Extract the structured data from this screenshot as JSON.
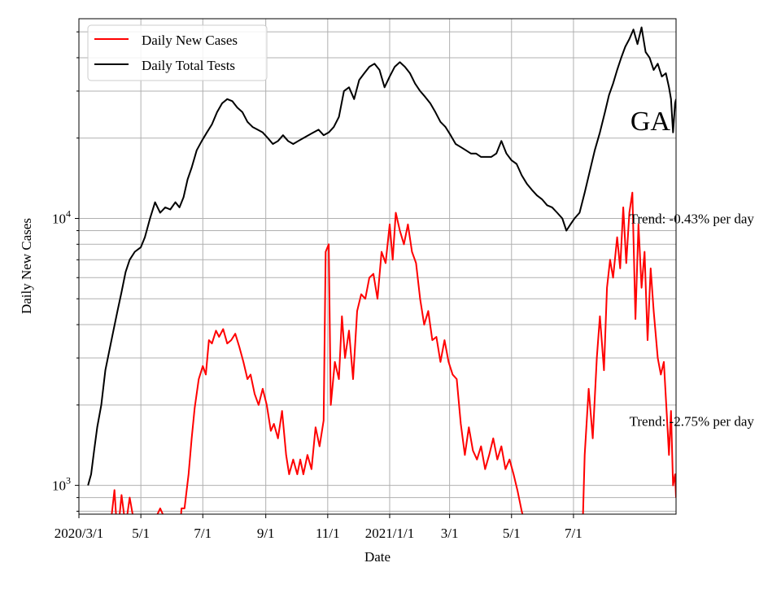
{
  "chart_data": {
    "type": "line",
    "title": "",
    "xlabel": "Date",
    "ylabel": "Daily New Cases",
    "yscale": "log",
    "ylim": [
      780,
      56000
    ],
    "xlim": [
      "2020-03-01",
      "2021-10-10"
    ],
    "grid": true,
    "legend_position": "upper left",
    "x_ticks": [
      {
        "date": "2020-03-01",
        "label": "2020/3/1"
      },
      {
        "date": "2020-05-01",
        "label": "5/1"
      },
      {
        "date": "2020-07-01",
        "label": "7/1"
      },
      {
        "date": "2020-09-01",
        "label": "9/1"
      },
      {
        "date": "2020-11-01",
        "label": "11/1"
      },
      {
        "date": "2021-01-01",
        "label": "2021/1/1"
      },
      {
        "date": "2021-03-01",
        "label": "3/1"
      },
      {
        "date": "2021-05-01",
        "label": "5/1"
      },
      {
        "date": "2021-07-01",
        "label": "7/1"
      }
    ],
    "y_ticks": [
      {
        "value": 1000,
        "base": "10",
        "exp": "3"
      },
      {
        "value": 10000,
        "base": "10",
        "exp": "4"
      }
    ],
    "annotations": [
      {
        "text": "GA",
        "date": "2021-08-26",
        "value": 23000
      },
      {
        "text": "Trend: -0.43% per day",
        "date": "2021-08-25",
        "value": 10000
      },
      {
        "text": "Trend: -2.75% per day",
        "date": "2021-08-25",
        "value": 1740
      }
    ],
    "series": [
      {
        "name": "Daily New Cases",
        "color": "#ff0000",
        "points": [
          [
            "2020-04-01",
            700
          ],
          [
            "2020-04-05",
            960
          ],
          [
            "2020-04-08",
            640
          ],
          [
            "2020-04-12",
            920
          ],
          [
            "2020-04-16",
            700
          ],
          [
            "2020-04-20",
            900
          ],
          [
            "2020-04-25",
            700
          ],
          [
            "2020-05-01",
            690
          ],
          [
            "2020-05-10",
            680
          ],
          [
            "2020-05-20",
            820
          ],
          [
            "2020-06-01",
            650
          ],
          [
            "2020-06-08",
            640
          ],
          [
            "2020-06-10",
            820
          ],
          [
            "2020-06-13",
            820
          ],
          [
            "2020-06-17",
            1100
          ],
          [
            "2020-06-20",
            1500
          ],
          [
            "2020-06-23",
            1950
          ],
          [
            "2020-06-27",
            2500
          ],
          [
            "2020-07-01",
            2800
          ],
          [
            "2020-07-04",
            2600
          ],
          [
            "2020-07-07",
            3500
          ],
          [
            "2020-07-10",
            3400
          ],
          [
            "2020-07-14",
            3800
          ],
          [
            "2020-07-17",
            3600
          ],
          [
            "2020-07-21",
            3850
          ],
          [
            "2020-07-25",
            3400
          ],
          [
            "2020-07-29",
            3500
          ],
          [
            "2020-08-02",
            3700
          ],
          [
            "2020-08-06",
            3300
          ],
          [
            "2020-08-10",
            2900
          ],
          [
            "2020-08-14",
            2500
          ],
          [
            "2020-08-17",
            2600
          ],
          [
            "2020-08-21",
            2200
          ],
          [
            "2020-08-25",
            2000
          ],
          [
            "2020-08-29",
            2300
          ],
          [
            "2020-09-02",
            2000
          ],
          [
            "2020-09-06",
            1600
          ],
          [
            "2020-09-09",
            1700
          ],
          [
            "2020-09-13",
            1500
          ],
          [
            "2020-09-17",
            1900
          ],
          [
            "2020-09-21",
            1300
          ],
          [
            "2020-09-24",
            1100
          ],
          [
            "2020-09-28",
            1250
          ],
          [
            "2020-10-02",
            1100
          ],
          [
            "2020-10-05",
            1250
          ],
          [
            "2020-10-08",
            1100
          ],
          [
            "2020-10-12",
            1300
          ],
          [
            "2020-10-16",
            1150
          ],
          [
            "2020-10-20",
            1650
          ],
          [
            "2020-10-24",
            1400
          ],
          [
            "2020-10-28",
            1750
          ],
          [
            "2020-10-30",
            7500
          ],
          [
            "2020-11-02",
            8000
          ],
          [
            "2020-11-04",
            2000
          ],
          [
            "2020-11-08",
            2900
          ],
          [
            "2020-11-12",
            2500
          ],
          [
            "2020-11-15",
            4300
          ],
          [
            "2020-11-18",
            3000
          ],
          [
            "2020-11-22",
            3800
          ],
          [
            "2020-11-26",
            2500
          ],
          [
            "2020-11-30",
            4500
          ],
          [
            "2020-12-04",
            5200
          ],
          [
            "2020-12-08",
            5000
          ],
          [
            "2020-12-12",
            6000
          ],
          [
            "2020-12-16",
            6200
          ],
          [
            "2020-12-20",
            5000
          ],
          [
            "2020-12-24",
            7500
          ],
          [
            "2020-12-28",
            6800
          ],
          [
            "2021-01-01",
            9500
          ],
          [
            "2021-01-04",
            7000
          ],
          [
            "2021-01-07",
            10500
          ],
          [
            "2021-01-11",
            9000
          ],
          [
            "2021-01-15",
            8000
          ],
          [
            "2021-01-19",
            9500
          ],
          [
            "2021-01-23",
            7500
          ],
          [
            "2021-01-27",
            6800
          ],
          [
            "2021-01-31",
            5000
          ],
          [
            "2021-02-04",
            4000
          ],
          [
            "2021-02-08",
            4500
          ],
          [
            "2021-02-12",
            3500
          ],
          [
            "2021-02-16",
            3600
          ],
          [
            "2021-02-20",
            2900
          ],
          [
            "2021-02-24",
            3500
          ],
          [
            "2021-02-28",
            2900
          ],
          [
            "2021-03-04",
            2600
          ],
          [
            "2021-03-08",
            2500
          ],
          [
            "2021-03-12",
            1700
          ],
          [
            "2021-03-16",
            1300
          ],
          [
            "2021-03-20",
            1650
          ],
          [
            "2021-03-24",
            1350
          ],
          [
            "2021-03-28",
            1250
          ],
          [
            "2021-04-01",
            1400
          ],
          [
            "2021-04-05",
            1150
          ],
          [
            "2021-04-09",
            1300
          ],
          [
            "2021-04-13",
            1500
          ],
          [
            "2021-04-17",
            1250
          ],
          [
            "2021-04-21",
            1400
          ],
          [
            "2021-04-25",
            1150
          ],
          [
            "2021-04-29",
            1250
          ],
          [
            "2021-05-03",
            1100
          ],
          [
            "2021-05-07",
            950
          ],
          [
            "2021-05-11",
            800
          ],
          [
            "2021-05-15",
            700
          ],
          [
            "2021-06-01",
            650
          ],
          [
            "2021-06-20",
            650
          ],
          [
            "2021-07-01",
            700
          ],
          [
            "2021-07-10",
            700
          ],
          [
            "2021-07-12",
            1300
          ],
          [
            "2021-07-16",
            2300
          ],
          [
            "2021-07-20",
            1500
          ],
          [
            "2021-07-24",
            3000
          ],
          [
            "2021-07-27",
            4300
          ],
          [
            "2021-07-31",
            2700
          ],
          [
            "2021-08-03",
            5500
          ],
          [
            "2021-08-06",
            7000
          ],
          [
            "2021-08-09",
            6000
          ],
          [
            "2021-08-13",
            8500
          ],
          [
            "2021-08-16",
            6500
          ],
          [
            "2021-08-19",
            11000
          ],
          [
            "2021-08-22",
            6800
          ],
          [
            "2021-08-25",
            10500
          ],
          [
            "2021-08-28",
            12500
          ],
          [
            "2021-08-31",
            4200
          ],
          [
            "2021-09-03",
            9500
          ],
          [
            "2021-09-06",
            5500
          ],
          [
            "2021-09-09",
            7500
          ],
          [
            "2021-09-12",
            3500
          ],
          [
            "2021-09-15",
            6500
          ],
          [
            "2021-09-18",
            4500
          ],
          [
            "2021-09-22",
            3000
          ],
          [
            "2021-09-25",
            2600
          ],
          [
            "2021-09-28",
            2900
          ],
          [
            "2021-10-01",
            1800
          ],
          [
            "2021-10-03",
            1300
          ],
          [
            "2021-10-05",
            1900
          ],
          [
            "2021-10-07",
            1000
          ],
          [
            "2021-10-09",
            1100
          ],
          [
            "2021-10-10",
            900
          ]
        ]
      },
      {
        "name": "Daily Total Tests",
        "color": "#000000",
        "points": [
          [
            "2020-03-10",
            1000
          ],
          [
            "2020-03-13",
            1100
          ],
          [
            "2020-03-16",
            1350
          ],
          [
            "2020-03-19",
            1650
          ],
          [
            "2020-03-23",
            2000
          ],
          [
            "2020-03-27",
            2700
          ],
          [
            "2020-03-31",
            3200
          ],
          [
            "2020-04-04",
            3800
          ],
          [
            "2020-04-08",
            4500
          ],
          [
            "2020-04-12",
            5300
          ],
          [
            "2020-04-16",
            6300
          ],
          [
            "2020-04-20",
            7000
          ],
          [
            "2020-04-25",
            7500
          ],
          [
            "2020-05-01",
            7800
          ],
          [
            "2020-05-05",
            8500
          ],
          [
            "2020-05-10",
            10000
          ],
          [
            "2020-05-15",
            11500
          ],
          [
            "2020-05-20",
            10500
          ],
          [
            "2020-05-25",
            11000
          ],
          [
            "2020-05-30",
            10800
          ],
          [
            "2020-06-04",
            11500
          ],
          [
            "2020-06-08",
            11000
          ],
          [
            "2020-06-12",
            12000
          ],
          [
            "2020-06-16",
            14000
          ],
          [
            "2020-06-20",
            15500
          ],
          [
            "2020-06-25",
            18000
          ],
          [
            "2020-06-30",
            19500
          ],
          [
            "2020-07-05",
            21000
          ],
          [
            "2020-07-10",
            22500
          ],
          [
            "2020-07-15",
            25000
          ],
          [
            "2020-07-20",
            27000
          ],
          [
            "2020-07-25",
            28000
          ],
          [
            "2020-07-30",
            27500
          ],
          [
            "2020-08-04",
            26000
          ],
          [
            "2020-08-09",
            25000
          ],
          [
            "2020-08-14",
            23000
          ],
          [
            "2020-08-19",
            22000
          ],
          [
            "2020-08-24",
            21500
          ],
          [
            "2020-08-29",
            21000
          ],
          [
            "2020-09-03",
            20000
          ],
          [
            "2020-09-08",
            19000
          ],
          [
            "2020-09-13",
            19500
          ],
          [
            "2020-09-18",
            20500
          ],
          [
            "2020-09-23",
            19500
          ],
          [
            "2020-09-28",
            19000
          ],
          [
            "2020-10-03",
            19500
          ],
          [
            "2020-10-08",
            20000
          ],
          [
            "2020-10-13",
            20500
          ],
          [
            "2020-10-18",
            21000
          ],
          [
            "2020-10-23",
            21500
          ],
          [
            "2020-10-28",
            20500
          ],
          [
            "2020-11-02",
            21000
          ],
          [
            "2020-11-07",
            22000
          ],
          [
            "2020-11-12",
            24000
          ],
          [
            "2020-11-17",
            30000
          ],
          [
            "2020-11-22",
            31000
          ],
          [
            "2020-11-27",
            28000
          ],
          [
            "2020-12-02",
            33000
          ],
          [
            "2020-12-07",
            35000
          ],
          [
            "2020-12-12",
            37000
          ],
          [
            "2020-12-17",
            38000
          ],
          [
            "2020-12-22",
            36000
          ],
          [
            "2020-12-27",
            31000
          ],
          [
            "2021-01-01",
            34000
          ],
          [
            "2021-01-06",
            37000
          ],
          [
            "2021-01-11",
            38500
          ],
          [
            "2021-01-16",
            37000
          ],
          [
            "2021-01-21",
            35000
          ],
          [
            "2021-01-26",
            32000
          ],
          [
            "2021-01-31",
            30000
          ],
          [
            "2021-02-05",
            28500
          ],
          [
            "2021-02-10",
            27000
          ],
          [
            "2021-02-15",
            25000
          ],
          [
            "2021-02-20",
            23000
          ],
          [
            "2021-02-25",
            22000
          ],
          [
            "2021-03-02",
            20500
          ],
          [
            "2021-03-07",
            19000
          ],
          [
            "2021-03-12",
            18500
          ],
          [
            "2021-03-17",
            18000
          ],
          [
            "2021-03-22",
            17500
          ],
          [
            "2021-03-27",
            17500
          ],
          [
            "2021-04-01",
            17000
          ],
          [
            "2021-04-06",
            17000
          ],
          [
            "2021-04-11",
            17000
          ],
          [
            "2021-04-16",
            17500
          ],
          [
            "2021-04-21",
            19500
          ],
          [
            "2021-04-26",
            17500
          ],
          [
            "2021-05-01",
            16500
          ],
          [
            "2021-05-06",
            16000
          ],
          [
            "2021-05-11",
            14500
          ],
          [
            "2021-05-16",
            13500
          ],
          [
            "2021-05-21",
            12800
          ],
          [
            "2021-05-26",
            12200
          ],
          [
            "2021-05-31",
            11800
          ],
          [
            "2021-06-05",
            11200
          ],
          [
            "2021-06-10",
            11000
          ],
          [
            "2021-06-15",
            10500
          ],
          [
            "2021-06-20",
            10000
          ],
          [
            "2021-06-24",
            9000
          ],
          [
            "2021-06-28",
            9500
          ],
          [
            "2021-07-02",
            10000
          ],
          [
            "2021-07-07",
            10500
          ],
          [
            "2021-07-12",
            12500
          ],
          [
            "2021-07-17",
            15000
          ],
          [
            "2021-07-22",
            18000
          ],
          [
            "2021-07-27",
            21000
          ],
          [
            "2021-08-01",
            25000
          ],
          [
            "2021-08-05",
            29000
          ],
          [
            "2021-08-09",
            32000
          ],
          [
            "2021-08-13",
            36000
          ],
          [
            "2021-08-17",
            40000
          ],
          [
            "2021-08-21",
            44000
          ],
          [
            "2021-08-25",
            47000
          ],
          [
            "2021-08-29",
            51000
          ],
          [
            "2021-09-02",
            45000
          ],
          [
            "2021-09-06",
            52000
          ],
          [
            "2021-09-10",
            42000
          ],
          [
            "2021-09-14",
            40000
          ],
          [
            "2021-09-18",
            36000
          ],
          [
            "2021-09-22",
            38000
          ],
          [
            "2021-09-26",
            34000
          ],
          [
            "2021-09-30",
            35000
          ],
          [
            "2021-10-03",
            31000
          ],
          [
            "2021-10-05",
            28000
          ],
          [
            "2021-10-07",
            21000
          ],
          [
            "2021-10-09",
            27000
          ],
          [
            "2021-10-10",
            28000
          ]
        ]
      }
    ]
  }
}
